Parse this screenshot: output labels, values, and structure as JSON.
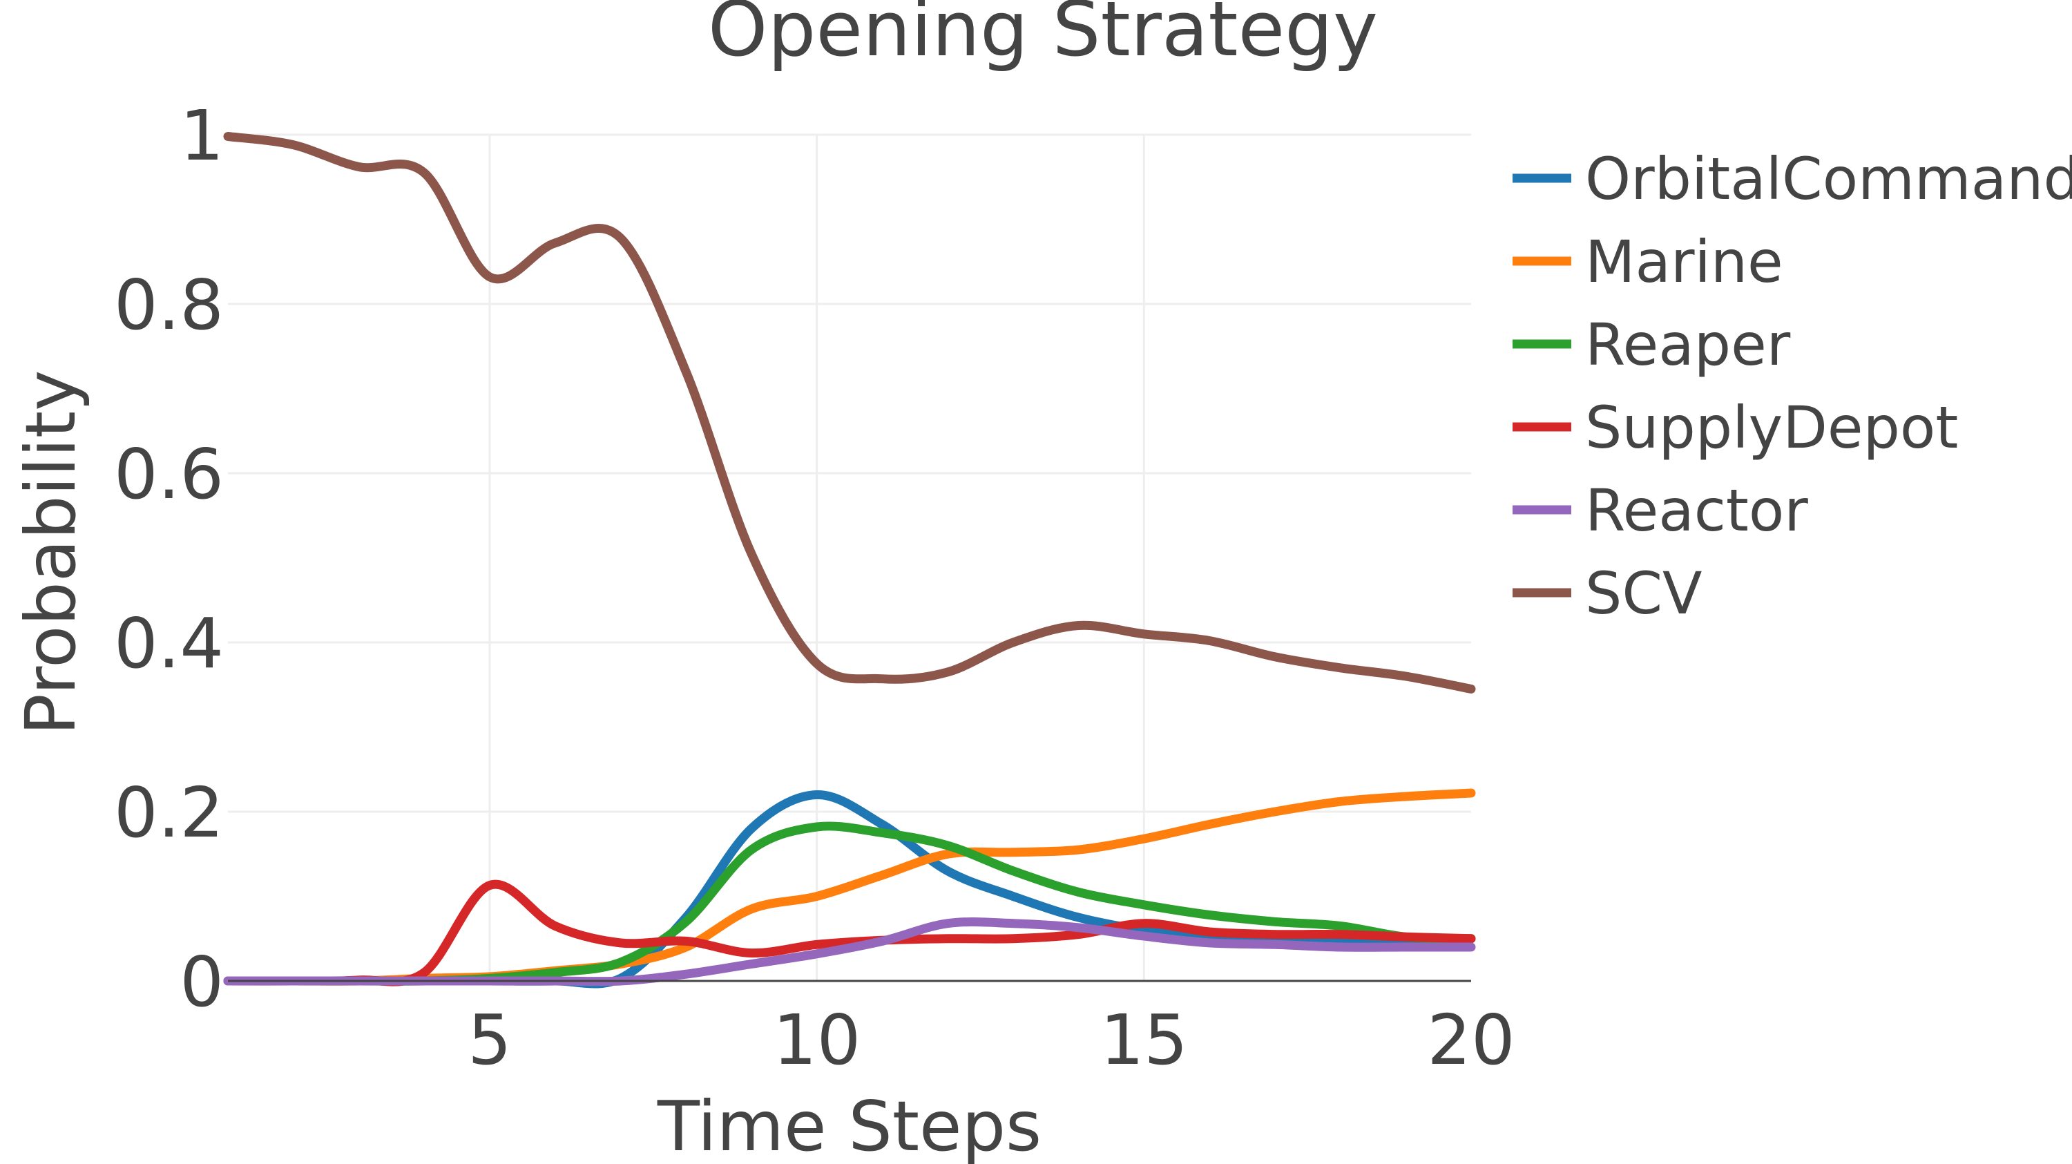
{
  "chart_data": {
    "type": "line",
    "title": "Opening Strategy",
    "xlabel": "Time Steps",
    "ylabel": "Probability",
    "xlim": [
      1,
      20
    ],
    "ylim": [
      0,
      1
    ],
    "xticks": [
      5,
      10,
      15,
      20
    ],
    "yticks": [
      0,
      0.2,
      0.4,
      0.6,
      0.8,
      1
    ],
    "ytick_labels": [
      "0",
      "0.2",
      "0.4",
      "0.6",
      "0.8",
      "1"
    ],
    "xtick_labels": [
      "5",
      "10",
      "15",
      "20"
    ],
    "grid": true,
    "legend_position": "top-right",
    "x": [
      1,
      2,
      3,
      4,
      5,
      6,
      7,
      8,
      9,
      10,
      11,
      12,
      13,
      14,
      15,
      16,
      17,
      18,
      19,
      20
    ],
    "series": [
      {
        "name": "OrbitalCommand",
        "color": "#1f77b4",
        "values": [
          0,
          0,
          0,
          0,
          0,
          0,
          0.003,
          0.075,
          0.18,
          0.22,
          0.185,
          0.13,
          0.1,
          0.075,
          0.06,
          0.05,
          0.05,
          0.05,
          0.05,
          0.05
        ]
      },
      {
        "name": "Marine",
        "color": "#ff7f0e",
        "values": [
          0,
          0,
          0,
          0.003,
          0.005,
          0.012,
          0.02,
          0.04,
          0.085,
          0.1,
          0.125,
          0.15,
          0.152,
          0.155,
          0.168,
          0.185,
          0.2,
          0.212,
          0.218,
          0.222
        ]
      },
      {
        "name": "Reaper",
        "color": "#2ca02c",
        "values": [
          0,
          0,
          0,
          0,
          0.003,
          0.01,
          0.022,
          0.07,
          0.155,
          0.182,
          0.175,
          0.16,
          0.13,
          0.105,
          0.09,
          0.078,
          0.07,
          0.065,
          0.052,
          0.05
        ]
      },
      {
        "name": "SupplyDepot",
        "color": "#d62728",
        "values": [
          0,
          0,
          0.001,
          0.01,
          0.113,
          0.065,
          0.045,
          0.047,
          0.033,
          0.043,
          0.048,
          0.05,
          0.05,
          0.055,
          0.068,
          0.058,
          0.055,
          0.055,
          0.052,
          0.05
        ]
      },
      {
        "name": "Reactor",
        "color": "#9467bd",
        "values": [
          0,
          0,
          0,
          0,
          0,
          0,
          0,
          0.008,
          0.02,
          0.032,
          0.047,
          0.068,
          0.068,
          0.063,
          0.053,
          0.045,
          0.043,
          0.04,
          0.04,
          0.04
        ]
      },
      {
        "name": "SCV",
        "color": "#8c564b",
        "values": [
          0.998,
          0.988,
          0.962,
          0.955,
          0.832,
          0.872,
          0.878,
          0.72,
          0.505,
          0.375,
          0.357,
          0.365,
          0.4,
          0.42,
          0.41,
          0.402,
          0.383,
          0.37,
          0.36,
          0.345
        ]
      }
    ]
  }
}
